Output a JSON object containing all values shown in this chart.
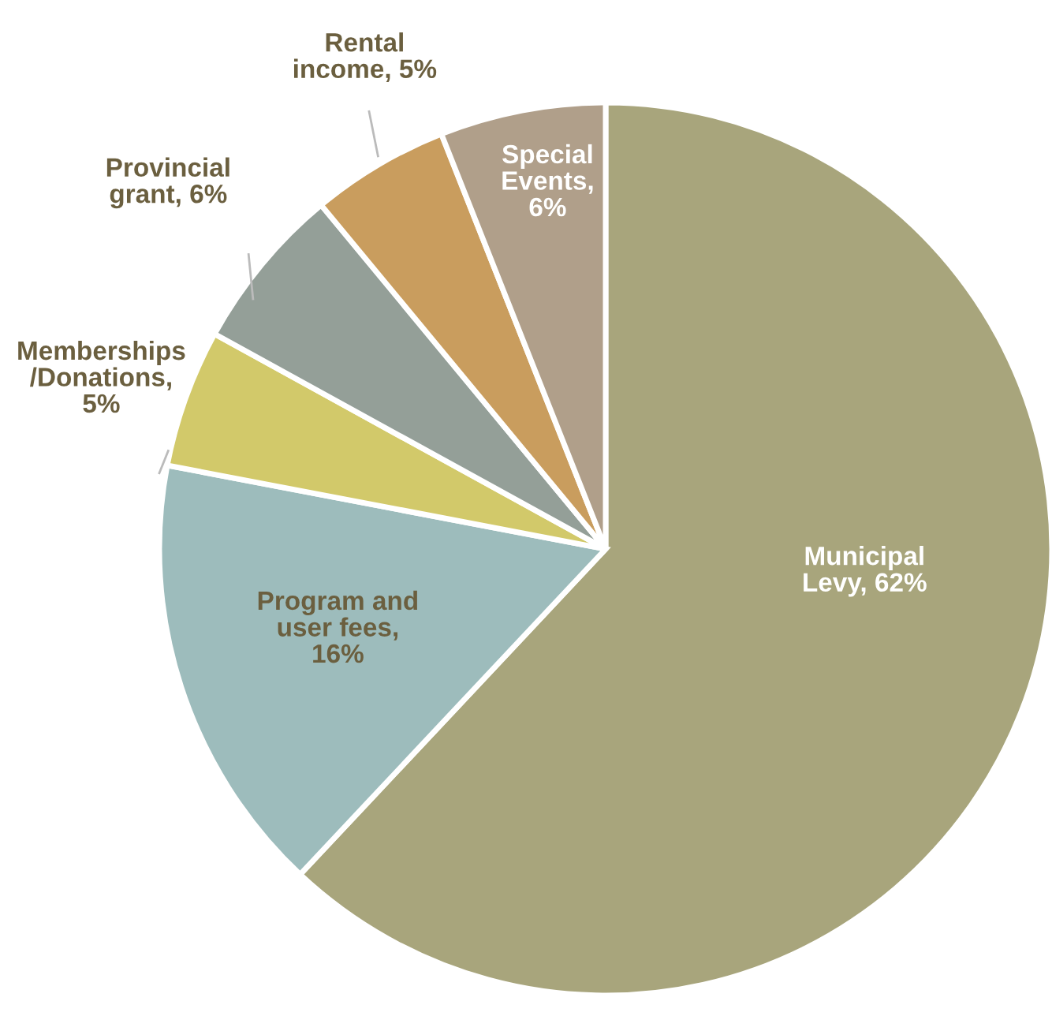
{
  "chart_data": {
    "type": "pie",
    "categories": [
      "Municipal\nLevy, 62%",
      "Program and\nuser fees,\n16%",
      "Memberships\n/Donations,\n5%",
      "Provincial\ngrant, 6%",
      "Rental\nincome, 5%",
      "Special\nEvents,\n6%"
    ],
    "values": [
      62,
      16,
      5,
      6,
      5,
      6
    ],
    "colors": [
      "#a8a57c",
      "#9dbcbc",
      "#d2c96a",
      "#949f98",
      "#c99d5e",
      "#b09f8a"
    ],
    "legend": false
  }
}
